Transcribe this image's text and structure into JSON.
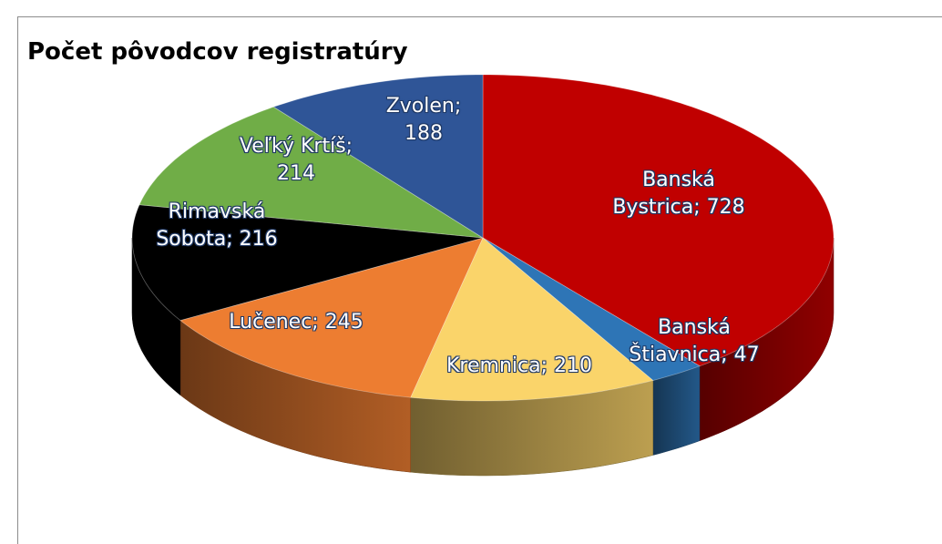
{
  "chart_data": {
    "type": "pie3d",
    "title": "Počet pôvodcov registratúry",
    "values": [
      728,
      47,
      210,
      245,
      216,
      214,
      188
    ],
    "value_labels": [
      "Banská Bystrica; 728",
      "Banská Štiavnica; 47",
      "Kremnica; 210",
      "Lučenec; 245",
      "Rimavská Sobota; 216",
      "Veľký Krtíš; 214",
      "Zvolen; 188"
    ],
    "colors": [
      "#c00000",
      "#2e75b6",
      "#fad46a",
      "#ed7d31",
      "#000000",
      "#70ad47",
      "#2f5597"
    ]
  }
}
